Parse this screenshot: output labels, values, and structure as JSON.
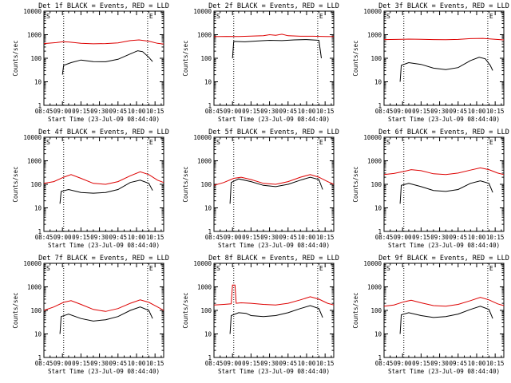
{
  "style": {
    "events_color": "#000000",
    "lld_color": "#dd0000",
    "axis_color": "#000000",
    "background": "#ffffff"
  },
  "chart_data": [
    {
      "type": "line",
      "title": "Det 1f BLACK = Events, RED = LLD",
      "xlabel": "Start Time (23-Jul-09 08:44:40)",
      "ylabel": "Counts/sec",
      "xticks": [
        "08:45",
        "09:00",
        "09:15",
        "09:30",
        "09:45",
        "10:00",
        "10:15"
      ],
      "yticks": [
        "1",
        "10",
        "100",
        "1000",
        "10000"
      ],
      "ylim": [
        1,
        10000
      ],
      "yscale": "log",
      "xlim_minutes_after_0845": [
        0,
        97
      ],
      "marker_lines_minutes": [
        16,
        84
      ],
      "corner_labels": [
        "S",
        "E"
      ],
      "series": [
        {
          "color": "#000000",
          "x": [
            15,
            16,
            22,
            30,
            40,
            50,
            60,
            70,
            76,
            80,
            85,
            88
          ],
          "y": [
            20,
            50,
            65,
            84,
            72,
            71,
            90,
            152,
            208,
            190,
            110,
            72
          ]
        },
        {
          "color": "#dd0000",
          "x": [
            0,
            5,
            10,
            15,
            20,
            30,
            40,
            50,
            60,
            70,
            77,
            85,
            92,
            97
          ],
          "y": [
            420,
            440,
            460,
            500,
            490,
            430,
            410,
            420,
            450,
            560,
            600,
            530,
            430,
            400
          ]
        }
      ]
    },
    {
      "type": "line",
      "title": "Det 2f BLACK = Events, RED = LLD",
      "xlabel": "Start Time (23-Jul-09 08:44:40)",
      "ylabel": "Counts/sec",
      "xticks": [
        "08:45",
        "09:00",
        "09:15",
        "09:30",
        "09:45",
        "10:00",
        "10:15"
      ],
      "yticks": [
        "1",
        "10",
        "100",
        "1000",
        "10000"
      ],
      "ylim": [
        1,
        10000
      ],
      "yscale": "log",
      "xlim_minutes_after_0845": [
        0,
        97
      ],
      "marker_lines_minutes": [
        16,
        84
      ],
      "corner_labels": [
        "S",
        "E"
      ],
      "series": [
        {
          "color": "#000000",
          "x": [
            15,
            16,
            25,
            35,
            45,
            55,
            65,
            75,
            85,
            87
          ],
          "y": [
            100,
            520,
            500,
            540,
            580,
            560,
            600,
            620,
            580,
            100
          ]
        },
        {
          "color": "#dd0000",
          "x": [
            0,
            10,
            20,
            30,
            40,
            45,
            50,
            55,
            60,
            70,
            80,
            90,
            97
          ],
          "y": [
            830,
            850,
            840,
            870,
            900,
            1000,
            950,
            1050,
            900,
            860,
            860,
            840,
            830
          ]
        }
      ]
    },
    {
      "type": "line",
      "title": "Det 3f BLACK = Events, RED = LLD",
      "xlabel": "Start Time (23-Jul-09 08:44:40)",
      "ylabel": "Counts/sec",
      "xticks": [
        "08:45",
        "09:00",
        "09:15",
        "09:30",
        "09:45",
        "10:00",
        "10:15"
      ],
      "yticks": [
        "1",
        "10",
        "100",
        "1000",
        "10000"
      ],
      "ylim": [
        1,
        10000
      ],
      "yscale": "log",
      "xlim_minutes_after_0845": [
        0,
        97
      ],
      "marker_lines_minutes": [
        16,
        84
      ],
      "corner_labels": [
        "S",
        "E"
      ],
      "series": [
        {
          "color": "#000000",
          "x": [
            13,
            14,
            20,
            30,
            40,
            50,
            60,
            70,
            77,
            82,
            86,
            88
          ],
          "y": [
            10,
            50,
            65,
            55,
            38,
            33,
            40,
            80,
            110,
            95,
            50,
            30
          ]
        },
        {
          "color": "#dd0000",
          "x": [
            0,
            10,
            20,
            30,
            40,
            50,
            60,
            70,
            80,
            90,
            97
          ],
          "y": [
            620,
            630,
            650,
            640,
            620,
            610,
            630,
            680,
            700,
            640,
            600
          ]
        }
      ]
    },
    {
      "type": "line",
      "title": "Det 4f BLACK = Events, RED = LLD",
      "xlabel": "Start Time (23-Jul-09 08:44:40)",
      "ylabel": "Counts/sec",
      "xticks": [
        "08:45",
        "09:00",
        "09:15",
        "09:30",
        "09:45",
        "10:00",
        "10:15"
      ],
      "yticks": [
        "1",
        "10",
        "100",
        "1000",
        "10000"
      ],
      "ylim": [
        1,
        10000
      ],
      "yscale": "log",
      "xlim_minutes_after_0845": [
        0,
        97
      ],
      "marker_lines_minutes": [
        16,
        84
      ],
      "corner_labels": [
        "S",
        "E"
      ],
      "series": [
        {
          "color": "#000000",
          "x": [
            13,
            14,
            20,
            30,
            40,
            50,
            60,
            70,
            78,
            85,
            88
          ],
          "y": [
            15,
            50,
            60,
            45,
            42,
            45,
            60,
            120,
            150,
            110,
            55
          ]
        },
        {
          "color": "#dd0000",
          "x": [
            0,
            8,
            16,
            22,
            30,
            40,
            50,
            60,
            70,
            78,
            85,
            92,
            97
          ],
          "y": [
            110,
            130,
            200,
            260,
            180,
            110,
            100,
            130,
            230,
            340,
            260,
            150,
            120
          ]
        }
      ]
    },
    {
      "type": "line",
      "title": "Det 5f BLACK = Events, RED = LLD",
      "xlabel": "Start Time (23-Jul-09 08:44:40)",
      "ylabel": "Counts/sec",
      "xticks": [
        "08:45",
        "09:00",
        "09:15",
        "09:30",
        "09:45",
        "10:00",
        "10:15"
      ],
      "yticks": [
        "1",
        "10",
        "100",
        "1000",
        "10000"
      ],
      "ylim": [
        1,
        10000
      ],
      "yscale": "log",
      "xlim_minutes_after_0845": [
        0,
        97
      ],
      "marker_lines_minutes": [
        16,
        84
      ],
      "corner_labels": [
        "S",
        "E"
      ],
      "series": [
        {
          "color": "#000000",
          "x": [
            13,
            14,
            20,
            30,
            40,
            50,
            60,
            70,
            78,
            85,
            88
          ],
          "y": [
            15,
            120,
            170,
            130,
            90,
            80,
            100,
            150,
            200,
            160,
            60
          ]
        },
        {
          "color": "#dd0000",
          "x": [
            0,
            8,
            16,
            22,
            30,
            40,
            50,
            60,
            70,
            78,
            85,
            92,
            97
          ],
          "y": [
            90,
            120,
            180,
            200,
            160,
            110,
            100,
            130,
            200,
            260,
            200,
            130,
            100
          ]
        }
      ]
    },
    {
      "type": "line",
      "title": "Det 6f BLACK = Events, RED = LLD",
      "xlabel": "Start Time (23-Jul-09 08:44:40)",
      "ylabel": "Counts/sec",
      "xticks": [
        "08:45",
        "09:00",
        "09:15",
        "09:30",
        "09:45",
        "10:00",
        "10:15"
      ],
      "yticks": [
        "1",
        "10",
        "100",
        "1000",
        "10000"
      ],
      "ylim": [
        1,
        10000
      ],
      "yscale": "log",
      "xlim_minutes_after_0845": [
        0,
        97
      ],
      "marker_lines_minutes": [
        16,
        84
      ],
      "corner_labels": [
        "S",
        "E"
      ],
      "series": [
        {
          "color": "#000000",
          "x": [
            13,
            14,
            20,
            30,
            40,
            50,
            60,
            70,
            78,
            85,
            88
          ],
          "y": [
            15,
            90,
            110,
            80,
            55,
            50,
            60,
            110,
            140,
            110,
            45
          ]
        },
        {
          "color": "#dd0000",
          "x": [
            0,
            8,
            16,
            22,
            30,
            40,
            50,
            60,
            70,
            78,
            85,
            92,
            97
          ],
          "y": [
            260,
            290,
            350,
            420,
            380,
            280,
            260,
            300,
            400,
            500,
            420,
            300,
            260
          ]
        }
      ]
    },
    {
      "type": "line",
      "title": "Det 7f BLACK = Events, RED = LLD",
      "xlabel": "Start Time (23-Jul-09 08:44:40)",
      "ylabel": "Counts/sec",
      "xticks": [
        "08:45",
        "09:00",
        "09:15",
        "09:30",
        "09:45",
        "10:00",
        "10:15"
      ],
      "yticks": [
        "1",
        "10",
        "100",
        "1000",
        "10000"
      ],
      "ylim": [
        1,
        10000
      ],
      "yscale": "log",
      "xlim_minutes_after_0845": [
        0,
        97
      ],
      "marker_lines_minutes": [
        16,
        84
      ],
      "corner_labels": [
        "S",
        "E"
      ],
      "series": [
        {
          "color": "#000000",
          "x": [
            13,
            14,
            20,
            30,
            40,
            50,
            60,
            70,
            78,
            85,
            88
          ],
          "y": [
            10,
            55,
            70,
            45,
            35,
            40,
            55,
            100,
            140,
            100,
            45
          ]
        },
        {
          "color": "#dd0000",
          "x": [
            0,
            8,
            16,
            22,
            30,
            40,
            50,
            60,
            70,
            78,
            85,
            92,
            97
          ],
          "y": [
            100,
            140,
            220,
            260,
            180,
            110,
            90,
            120,
            200,
            280,
            220,
            140,
            100
          ]
        }
      ]
    },
    {
      "type": "line",
      "title": "Det 8f BLACK = Events, RED = LLD",
      "xlabel": "Start Time (23-Jul-09 08:44:40)",
      "ylabel": "Counts/sec",
      "xticks": [
        "08:45",
        "09:00",
        "09:15",
        "09:30",
        "09:45",
        "10:00",
        "10:15"
      ],
      "yticks": [
        "1",
        "10",
        "100",
        "1000",
        "10000"
      ],
      "ylim": [
        1,
        10000
      ],
      "yscale": "log",
      "xlim_minutes_after_0845": [
        0,
        97
      ],
      "marker_lines_minutes": [
        16,
        84
      ],
      "corner_labels": [
        "S",
        "E"
      ],
      "series": [
        {
          "color": "#000000",
          "x": [
            13,
            14,
            20,
            26,
            30,
            40,
            50,
            60,
            70,
            78,
            85,
            88
          ],
          "y": [
            10,
            60,
            80,
            75,
            60,
            55,
            60,
            80,
            120,
            160,
            120,
            50
          ]
        },
        {
          "color": "#dd0000",
          "x": [
            0,
            8,
            14,
            15,
            17,
            18,
            22,
            30,
            40,
            50,
            60,
            70,
            78,
            85,
            92,
            97
          ],
          "y": [
            170,
            180,
            190,
            1200,
            1200,
            200,
            210,
            200,
            180,
            170,
            200,
            280,
            380,
            300,
            200,
            170
          ]
        }
      ]
    },
    {
      "type": "line",
      "title": "Det 9f BLACK = Events, RED = LLD",
      "xlabel": "Start Time (23-Jul-09 08:44:40)",
      "ylabel": "Counts/sec",
      "xticks": [
        "08:45",
        "09:00",
        "09:15",
        "09:30",
        "09:45",
        "10:00",
        "10:15"
      ],
      "yticks": [
        "1",
        "10",
        "100",
        "1000",
        "10000"
      ],
      "ylim": [
        1,
        10000
      ],
      "yscale": "log",
      "xlim_minutes_after_0845": [
        0,
        97
      ],
      "marker_lines_minutes": [
        16,
        84
      ],
      "corner_labels": [
        "S",
        "E"
      ],
      "series": [
        {
          "color": "#000000",
          "x": [
            13,
            14,
            20,
            30,
            40,
            50,
            60,
            70,
            78,
            85,
            88
          ],
          "y": [
            10,
            65,
            80,
            60,
            50,
            55,
            70,
            110,
            150,
            110,
            45
          ]
        },
        {
          "color": "#dd0000",
          "x": [
            0,
            8,
            16,
            22,
            30,
            40,
            50,
            60,
            70,
            78,
            85,
            92,
            97
          ],
          "y": [
            150,
            170,
            230,
            270,
            210,
            160,
            150,
            180,
            260,
            360,
            280,
            190,
            160
          ]
        }
      ]
    }
  ]
}
